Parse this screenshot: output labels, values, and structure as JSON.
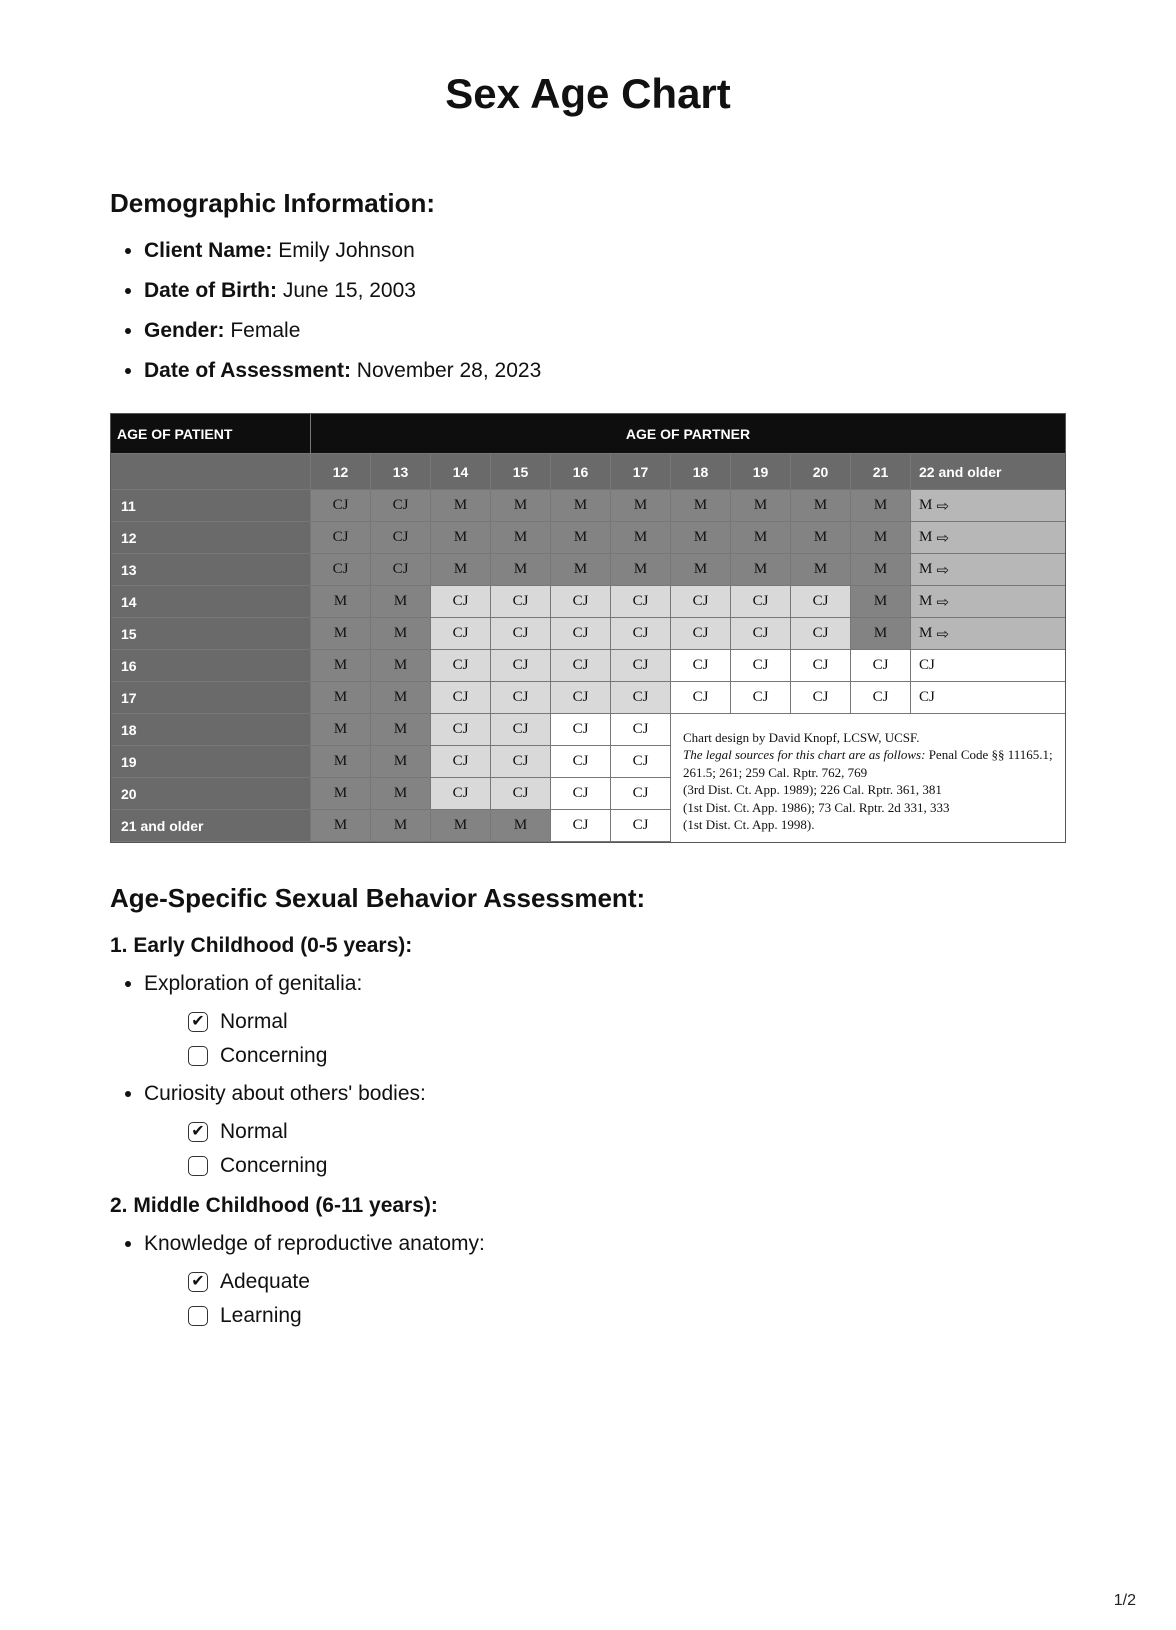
{
  "title": "Sex Age Chart",
  "page_number": "1/2",
  "demo": {
    "heading": "Demographic Information:",
    "items": [
      {
        "label": "Client Name:",
        "value": " Emily Johnson"
      },
      {
        "label": "Date of Birth:",
        "value": "June 15, 2003"
      },
      {
        "label": "Gender:",
        "value": " Female"
      },
      {
        "label": "Date of Assessment:",
        "value": " November 28, 2023"
      }
    ]
  },
  "chart": {
    "col_header_left": "AGE OF PATIENT",
    "col_header_right": "AGE OF PARTNER",
    "partner_ages": [
      "12",
      "13",
      "14",
      "15",
      "16",
      "17",
      "18",
      "19",
      "20",
      "21",
      "22 and older"
    ],
    "rows": [
      {
        "age": "11",
        "cells": [
          "CJ",
          "CJ",
          "M",
          "M",
          "M",
          "M",
          "M",
          "M",
          "M",
          "M",
          "M ⇒"
        ],
        "shades": [
          "d",
          "d",
          "d",
          "d",
          "d",
          "d",
          "d",
          "d",
          "d",
          "d",
          "m"
        ]
      },
      {
        "age": "12",
        "cells": [
          "CJ",
          "CJ",
          "M",
          "M",
          "M",
          "M",
          "M",
          "M",
          "M",
          "M",
          "M ⇒"
        ],
        "shades": [
          "d",
          "d",
          "d",
          "d",
          "d",
          "d",
          "d",
          "d",
          "d",
          "d",
          "m"
        ]
      },
      {
        "age": "13",
        "cells": [
          "CJ",
          "CJ",
          "M",
          "M",
          "M",
          "M",
          "M",
          "M",
          "M",
          "M",
          "M ⇒"
        ],
        "shades": [
          "d",
          "d",
          "d",
          "d",
          "d",
          "d",
          "d",
          "d",
          "d",
          "d",
          "m"
        ]
      },
      {
        "age": "14",
        "cells": [
          "M",
          "M",
          "CJ",
          "CJ",
          "CJ",
          "CJ",
          "CJ",
          "CJ",
          "CJ",
          "M",
          "M ⇒"
        ],
        "shades": [
          "d",
          "d",
          "l",
          "l",
          "l",
          "l",
          "l",
          "l",
          "l",
          "d",
          "m"
        ]
      },
      {
        "age": "15",
        "cells": [
          "M",
          "M",
          "CJ",
          "CJ",
          "CJ",
          "CJ",
          "CJ",
          "CJ",
          "CJ",
          "M",
          "M ⇒"
        ],
        "shades": [
          "d",
          "d",
          "l",
          "l",
          "l",
          "l",
          "l",
          "l",
          "l",
          "d",
          "m"
        ]
      },
      {
        "age": "16",
        "cells": [
          "M",
          "M",
          "CJ",
          "CJ",
          "CJ",
          "CJ",
          "CJ",
          "CJ",
          "CJ",
          "CJ",
          "CJ"
        ],
        "shades": [
          "d",
          "d",
          "l",
          "l",
          "l",
          "l",
          "w",
          "w",
          "w",
          "w",
          "w"
        ]
      },
      {
        "age": "17",
        "cells": [
          "M",
          "M",
          "CJ",
          "CJ",
          "CJ",
          "CJ",
          "CJ",
          "CJ",
          "CJ",
          "CJ",
          "CJ"
        ],
        "shades": [
          "d",
          "d",
          "l",
          "l",
          "l",
          "l",
          "w",
          "w",
          "w",
          "w",
          "w"
        ]
      },
      {
        "age": "18",
        "cells": [
          "M",
          "M",
          "CJ",
          "CJ",
          "CJ",
          "CJ"
        ],
        "shades": [
          "d",
          "d",
          "l",
          "l",
          "w",
          "w"
        ]
      },
      {
        "age": "19",
        "cells": [
          "M",
          "M",
          "CJ",
          "CJ",
          "CJ",
          "CJ"
        ],
        "shades": [
          "d",
          "d",
          "l",
          "l",
          "w",
          "w"
        ]
      },
      {
        "age": "20",
        "cells": [
          "M",
          "M",
          "CJ",
          "CJ",
          "CJ",
          "CJ"
        ],
        "shades": [
          "d",
          "d",
          "l",
          "l",
          "w",
          "w"
        ]
      },
      {
        "age": "21 and older",
        "cells": [
          "M",
          "M",
          "M",
          "M",
          "CJ",
          "CJ"
        ],
        "shades": [
          "d",
          "d",
          "d",
          "d",
          "w",
          "w"
        ]
      }
    ],
    "footnote_lines": [
      "Chart design by David Knopf, LCSW, UCSF.",
      "The legal sources for this chart are as follows:",
      "Penal Code §§ 11165.1; 261.5; 261; 259 Cal. Rptr. 762, 769",
      "(3rd Dist. Ct. App. 1989); 226 Cal. Rptr. 361, 381",
      "(1st Dist. Ct. App. 1986); 73 Cal. Rptr. 2d 331, 333",
      "(1st Dist. Ct. App. 1998)."
    ]
  },
  "assess": {
    "heading": "Age-Specific Sexual Behavior Assessment:",
    "groups": [
      {
        "title": "1. Early Childhood (0-5 years):",
        "items": [
          {
            "label": "Exploration of genitalia:",
            "options": [
              {
                "text": "Normal",
                "checked": true
              },
              {
                "text": "Concerning",
                "checked": false
              }
            ]
          },
          {
            "label": "Curiosity about others' bodies:",
            "options": [
              {
                "text": "Normal",
                "checked": true
              },
              {
                "text": "Concerning",
                "checked": false
              }
            ]
          }
        ]
      },
      {
        "title": "2. Middle Childhood (6-11 years):",
        "items": [
          {
            "label": "Knowledge of reproductive anatomy:",
            "options": [
              {
                "text": "Adequate",
                "checked": true
              },
              {
                "text": "Learning",
                "checked": false
              }
            ]
          }
        ]
      }
    ]
  },
  "colors": {
    "header_black": "#0e0e0e",
    "header_grey": "#6a6a6a",
    "cell_dark": "#838383",
    "cell_mid": "#b7b7b7",
    "cell_light": "#d9d9d9",
    "cell_white": "#ffffff"
  }
}
